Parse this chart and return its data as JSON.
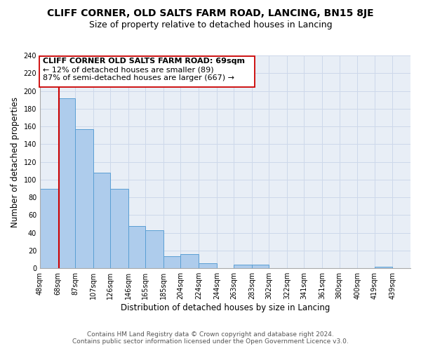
{
  "title": "CLIFF CORNER, OLD SALTS FARM ROAD, LANCING, BN15 8JE",
  "subtitle": "Size of property relative to detached houses in Lancing",
  "xlabel": "Distribution of detached houses by size in Lancing",
  "ylabel": "Number of detached properties",
  "bar_left_edges": [
    48,
    68,
    87,
    107,
    126,
    146,
    165,
    185,
    204,
    224,
    244,
    263,
    283,
    302,
    322,
    341,
    361,
    380,
    400,
    419
  ],
  "bar_heights": [
    90,
    192,
    157,
    108,
    90,
    48,
    43,
    14,
    16,
    6,
    0,
    4,
    4,
    0,
    0,
    0,
    0,
    0,
    0,
    2
  ],
  "bar_widths": [
    20,
    19,
    20,
    19,
    20,
    19,
    20,
    19,
    20,
    20,
    19,
    20,
    19,
    20,
    19,
    20,
    19,
    20,
    19,
    20
  ],
  "bar_color": "#aeccec",
  "bar_edge_color": "#5a9fd4",
  "highlight_x": 69,
  "highlight_color": "#cc0000",
  "xlim": [
    48,
    459
  ],
  "ylim": [
    0,
    240
  ],
  "yticks": [
    0,
    20,
    40,
    60,
    80,
    100,
    120,
    140,
    160,
    180,
    200,
    220,
    240
  ],
  "xtick_labels": [
    "48sqm",
    "68sqm",
    "87sqm",
    "107sqm",
    "126sqm",
    "146sqm",
    "165sqm",
    "185sqm",
    "204sqm",
    "224sqm",
    "244sqm",
    "263sqm",
    "283sqm",
    "302sqm",
    "322sqm",
    "341sqm",
    "361sqm",
    "380sqm",
    "400sqm",
    "419sqm",
    "439sqm"
  ],
  "xtick_positions": [
    48,
    68,
    87,
    107,
    126,
    146,
    165,
    185,
    204,
    224,
    244,
    263,
    283,
    302,
    322,
    341,
    361,
    380,
    400,
    419,
    439
  ],
  "annotation_title": "CLIFF CORNER OLD SALTS FARM ROAD: 69sqm",
  "annotation_line1": "← 12% of detached houses are smaller (89)",
  "annotation_line2": "87% of semi-detached houses are larger (667) →",
  "footer1": "Contains HM Land Registry data © Crown copyright and database right 2024.",
  "footer2": "Contains public sector information licensed under the Open Government Licence v3.0.",
  "grid_color": "#cdd8ea",
  "background_color": "#e8eef6",
  "title_fontsize": 10,
  "subtitle_fontsize": 9,
  "axis_label_fontsize": 8.5,
  "tick_fontsize": 7,
  "annotation_fontsize": 8,
  "footer_fontsize": 6.5
}
